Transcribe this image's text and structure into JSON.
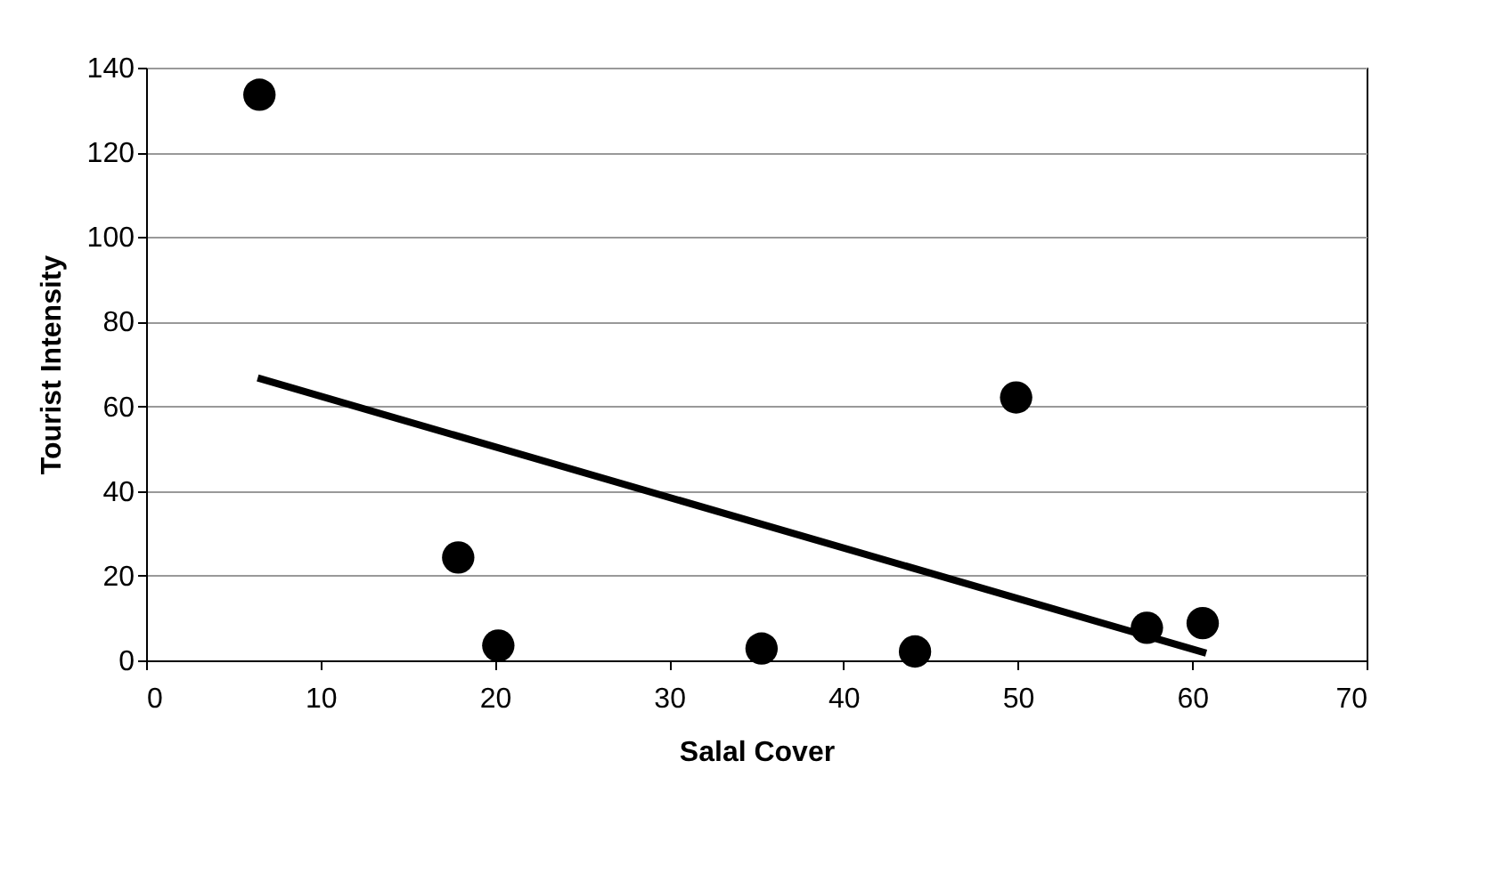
{
  "chart_data": {
    "type": "scatter",
    "xlabel": "Salal Cover",
    "ylabel": "Tourist Intensity",
    "xlim": [
      0,
      70
    ],
    "xticks": [
      0,
      10,
      20,
      30,
      40,
      50,
      60,
      70
    ],
    "ylim": [
      0,
      140
    ],
    "yticks": [
      0,
      20,
      40,
      60,
      80,
      100,
      120,
      140
    ],
    "grid": "y",
    "series": [
      {
        "marker": "circle",
        "color": "#000000",
        "x": [
          6.5,
          17.9,
          20.2,
          35.3,
          44.1,
          49.9,
          57.4,
          60.6
        ],
        "values": [
          133.6,
          24.3,
          3.5,
          2.8,
          2.1,
          62.1,
          7.7,
          8.8
        ]
      },
      {
        "type": "line",
        "color": "#000000",
        "x": [
          6.4,
          60.8
        ],
        "values": [
          66.7,
          1.7
        ],
        "marker": "none",
        "line_style": "solid"
      }
    ]
  }
}
